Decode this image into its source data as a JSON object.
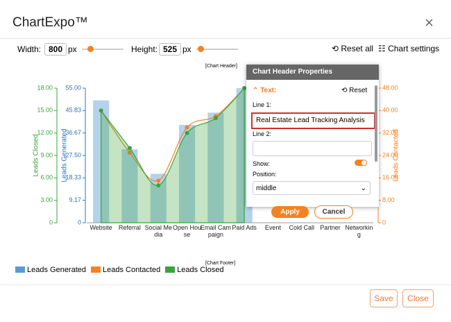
{
  "dialog": {
    "title": "ChartExpo™"
  },
  "toolbar": {
    "width_label": "Width:",
    "width": 800,
    "unit": "px",
    "height_label": "Height:",
    "height": 525,
    "reset_all": "Reset all",
    "chart_settings": "Chart settings"
  },
  "chart_header_placeholder": "[Chart Header]",
  "chart_footer_placeholder": "[Chart Footer]",
  "chart_data": {
    "type": "combo",
    "categories": [
      "Website",
      "Referral",
      "Social Media",
      "Open House",
      "Email Campaign",
      "Paid Ads",
      "Event",
      "Cold Call",
      "Partner",
      "Networking"
    ],
    "series": [
      {
        "name": "Leads Generated",
        "type": "bar",
        "color": "#5b9bd5",
        "axis": "y",
        "values": [
          50,
          30,
          20,
          40,
          45,
          55,
          null,
          null,
          null,
          null
        ]
      },
      {
        "name": "Leads Contacted",
        "type": "line",
        "color": "#f58220",
        "axis": "y2",
        "values": [
          40,
          25,
          15,
          34,
          38,
          48,
          null,
          null,
          null,
          null
        ]
      },
      {
        "name": "Leads Closed",
        "type": "area",
        "color": "#3aa43a",
        "axis": "y3",
        "values": [
          15,
          10,
          5,
          12,
          14,
          18,
          null,
          null,
          null,
          null
        ]
      }
    ],
    "ylabel": "Leads Generated",
    "ylim": [
      0,
      55
    ],
    "yticks": [
      0,
      9.17,
      18.33,
      {
        "value": 27.5,
        "label": "27.50"
      },
      36.67,
      45.83,
      {
        "value": 55,
        "label": "55.00"
      }
    ],
    "y2label": "Leads Contacted",
    "y2lim": [
      0,
      48
    ],
    "y2ticks": [
      0,
      {
        "value": 8,
        "label": "8.00"
      },
      {
        "value": 16,
        "label": "16.00"
      },
      {
        "value": 24,
        "label": "24.00"
      },
      {
        "value": 32,
        "label": "32.00"
      },
      {
        "value": 40,
        "label": "40.00"
      },
      {
        "value": 48,
        "label": "48.00"
      }
    ],
    "y3label": "Leads Closed",
    "y3lim": [
      0,
      18
    ],
    "y3ticks": [
      0,
      {
        "value": 3,
        "label": "3.00"
      },
      {
        "value": 6,
        "label": "6.00"
      },
      {
        "value": 9,
        "label": "9.00"
      },
      {
        "value": 12,
        "label": "12.00"
      },
      {
        "value": 15,
        "label": "15.00"
      },
      {
        "value": 18,
        "label": "18.00"
      }
    ]
  },
  "panel": {
    "title": "Chart Header Properties",
    "section": "Text:",
    "reset": "Reset",
    "line1_label": "Line 1:",
    "line1_value": "Real Estate Lead Tracking Analysis",
    "line2_label": "Line 2:",
    "show_label": "Show:",
    "position_label": "Position:",
    "position_value": "middle",
    "apply": "Apply",
    "cancel": "Cancel"
  },
  "footer": {
    "save": "Save",
    "close": "Close"
  }
}
